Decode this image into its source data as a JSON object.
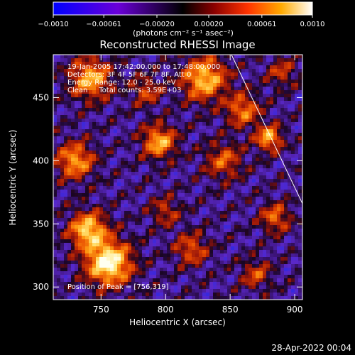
{
  "colorbar": {
    "ticks": [
      {
        "value": -0.001,
        "label": "−0.0010"
      },
      {
        "value": -0.00061,
        "label": "−0.00061"
      },
      {
        "value": -0.0002,
        "label": "−0.00020"
      },
      {
        "value": 0.0002,
        "label": "0.00020"
      },
      {
        "value": 0.00061,
        "label": "0.00061"
      },
      {
        "value": 0.001,
        "label": "0.0010"
      }
    ],
    "range": [
      -0.001,
      0.001
    ],
    "unit_label": "(photons cm⁻² s⁻¹ asec⁻²)",
    "colors": [
      "#0000ff",
      "#6600ff",
      "#000000",
      "#cc2200",
      "#ff8800",
      "#ffee88",
      "#ffffff"
    ]
  },
  "chart_data": {
    "type": "heatmap",
    "title": "Reconstructed RHESSI Image",
    "xlabel": "Heliocentric X (arcsec)",
    "ylabel": "Heliocentric Y (arcsec)",
    "xlim": [
      713,
      906
    ],
    "ylim": [
      290,
      484
    ],
    "xticks": [
      750,
      800,
      850,
      900
    ],
    "yticks": [
      300,
      350,
      400,
      450
    ],
    "info_lines": [
      "19-Jan-2005 17:42:00.000 to 17:48:00.000",
      "Detectors: 3F 4F 5F 6F 7F 8F, Att 0",
      "Energy Range: 12.0 - 25.0 keV",
      "Clean     Total counts: 3.59E+03"
    ],
    "peak_text": "Position of Peak = [756,319]",
    "peak": [
      756,
      319
    ],
    "limb_line": {
      "x": [
        851,
        906
      ],
      "y": [
        484,
        366
      ]
    },
    "sources": [
      {
        "x": 756,
        "y": 319,
        "intensity": 1.0,
        "sigma": 12
      },
      {
        "x": 740,
        "y": 345,
        "intensity": 0.8,
        "sigma": 10
      },
      {
        "x": 730,
        "y": 400,
        "intensity": 0.65,
        "sigma": 10
      },
      {
        "x": 742,
        "y": 465,
        "intensity": 0.7,
        "sigma": 11
      },
      {
        "x": 795,
        "y": 415,
        "intensity": 0.7,
        "sigma": 9
      },
      {
        "x": 830,
        "y": 465,
        "intensity": 0.75,
        "sigma": 12
      },
      {
        "x": 860,
        "y": 440,
        "intensity": 0.55,
        "sigma": 9
      },
      {
        "x": 880,
        "y": 418,
        "intensity": 0.7,
        "sigma": 7
      },
      {
        "x": 845,
        "y": 400,
        "intensity": 0.45,
        "sigma": 10
      },
      {
        "x": 885,
        "y": 355,
        "intensity": 0.5,
        "sigma": 8
      },
      {
        "x": 820,
        "y": 330,
        "intensity": 0.45,
        "sigma": 9
      },
      {
        "x": 870,
        "y": 310,
        "intensity": 0.4,
        "sigma": 8
      },
      {
        "x": 785,
        "y": 455,
        "intensity": 0.4,
        "sigma": 8
      },
      {
        "x": 800,
        "y": 360,
        "intensity": 0.35,
        "sigma": 8
      },
      {
        "x": 890,
        "y": 470,
        "intensity": 0.35,
        "sigma": 8
      }
    ]
  },
  "timestamp": "28-Apr-2022 00:04"
}
